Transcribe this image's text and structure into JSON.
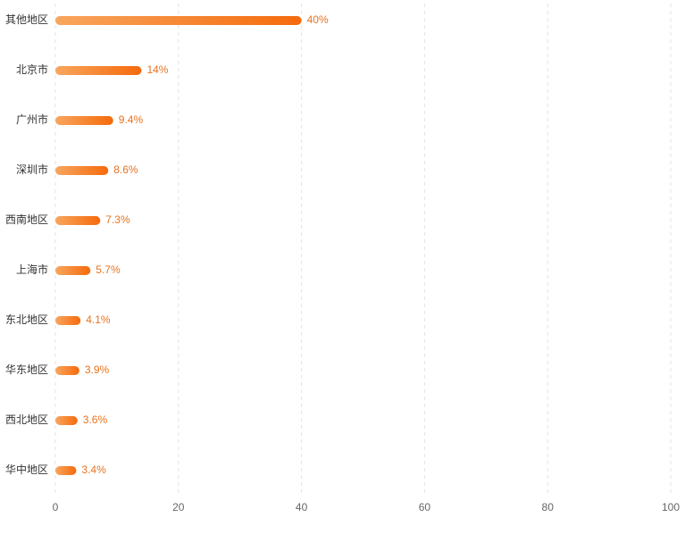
{
  "chart_data": {
    "type": "bar",
    "orientation": "horizontal",
    "categories": [
      "其他地区",
      "北京市",
      "广州市",
      "深圳市",
      "西南地区",
      "上海市",
      "东北地区",
      "华东地区",
      "西北地区",
      "华中地区"
    ],
    "values": [
      40,
      14,
      9.4,
      8.6,
      7.3,
      5.7,
      4.1,
      3.9,
      3.6,
      3.4
    ],
    "value_labels": [
      "40%",
      "14%",
      "9.4%",
      "8.6%",
      "7.3%",
      "5.7%",
      "4.1%",
      "3.9%",
      "3.6%",
      "3.4%"
    ],
    "colors": [
      "#f8a65e",
      "#f56a0c"
    ],
    "xlim": [
      0,
      100
    ],
    "xticks": [
      0,
      20,
      40,
      60,
      80,
      100
    ],
    "grid": true
  }
}
